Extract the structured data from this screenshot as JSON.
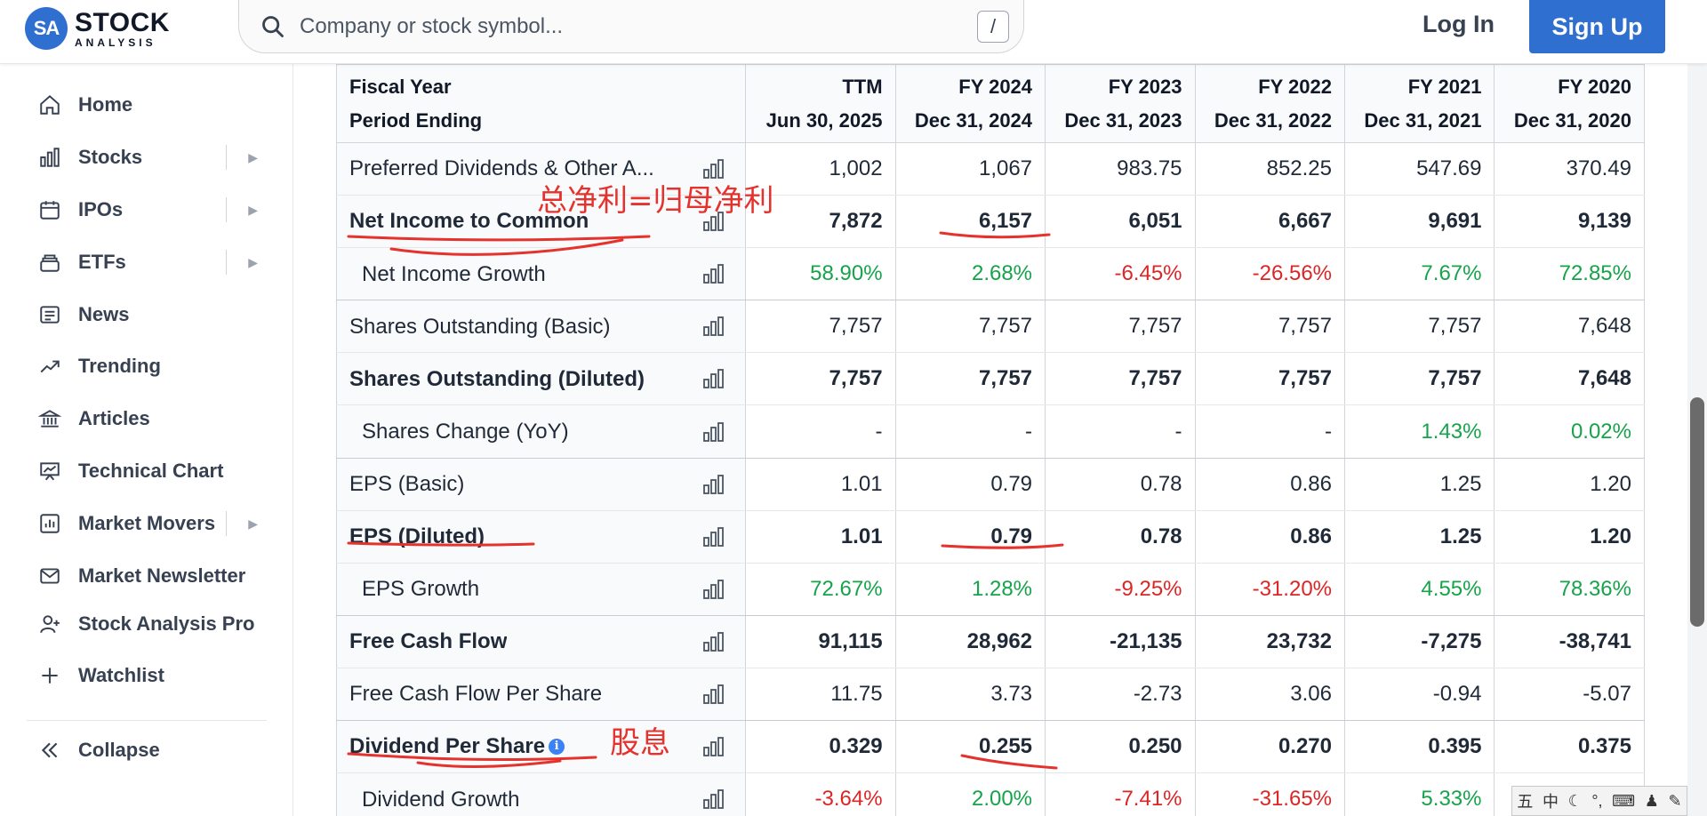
{
  "header": {
    "logo_badge": "SA",
    "logo_line1": "STOCK",
    "logo_line2": "ANALYSIS",
    "search_placeholder": "Company or stock symbol...",
    "search_shortcut": "/",
    "login_label": "Log In",
    "signup_label": "Sign Up",
    "accent_color": "#2f6fcf"
  },
  "sidebar": {
    "items": [
      {
        "label": "Home",
        "icon": "home-icon"
      },
      {
        "label": "Stocks",
        "icon": "bar-chart-icon",
        "expandable": true
      },
      {
        "label": "IPOs",
        "icon": "calendar-icon",
        "expandable": true
      },
      {
        "label": "ETFs",
        "icon": "stack-icon",
        "expandable": true
      },
      {
        "label": "News",
        "icon": "newspaper-icon"
      },
      {
        "label": "Trending",
        "icon": "trending-icon"
      },
      {
        "label": "Articles",
        "icon": "bank-icon"
      },
      {
        "label": "Technical Chart",
        "icon": "presentation-chart-icon"
      },
      {
        "label": "Market Movers",
        "icon": "chart-box-icon",
        "expandable": true
      },
      {
        "label": "Market Newsletter",
        "icon": "mail-icon"
      },
      {
        "label": "Stock Analysis Pro",
        "icon": "user-plus-icon"
      },
      {
        "label": "Watchlist",
        "icon": "plus-icon"
      }
    ],
    "collapse_label": "Collapse"
  },
  "table": {
    "header_label_1": "Fiscal Year",
    "header_label_2": "Period Ending",
    "columns": [
      {
        "fy": "TTM",
        "date": "Jun 30, 2025"
      },
      {
        "fy": "FY 2024",
        "date": "Dec 31, 2024"
      },
      {
        "fy": "FY 2023",
        "date": "Dec 31, 2023"
      },
      {
        "fy": "FY 2022",
        "date": "Dec 31, 2022"
      },
      {
        "fy": "FY 2021",
        "date": "Dec 31, 2021"
      },
      {
        "fy": "FY 2020",
        "date": "Dec 31, 2020"
      }
    ],
    "rows": [
      {
        "label": "Preferred Dividends & Other A...",
        "values": [
          "1,002",
          "1,067",
          "983.75",
          "852.25",
          "547.69",
          "370.49"
        ]
      },
      {
        "label": "Net Income to Common",
        "values": [
          "7,872",
          "6,157",
          "6,051",
          "6,667",
          "9,691",
          "9,139"
        ]
      },
      {
        "label": "Net Income Growth",
        "values": [
          "58.90%",
          "2.68%",
          "-6.45%",
          "-26.56%",
          "7.67%",
          "72.85%"
        ]
      },
      {
        "label": "Shares Outstanding (Basic)",
        "values": [
          "7,757",
          "7,757",
          "7,757",
          "7,757",
          "7,757",
          "7,648"
        ]
      },
      {
        "label": "Shares Outstanding (Diluted)",
        "values": [
          "7,757",
          "7,757",
          "7,757",
          "7,757",
          "7,757",
          "7,648"
        ]
      },
      {
        "label": "Shares Change (YoY)",
        "values": [
          "-",
          "-",
          "-",
          "-",
          "1.43%",
          "0.02%"
        ]
      },
      {
        "label": "EPS (Basic)",
        "values": [
          "1.01",
          "0.79",
          "0.78",
          "0.86",
          "1.25",
          "1.20"
        ]
      },
      {
        "label": "EPS (Diluted)",
        "values": [
          "1.01",
          "0.79",
          "0.78",
          "0.86",
          "1.25",
          "1.20"
        ]
      },
      {
        "label": "EPS Growth",
        "values": [
          "72.67%",
          "1.28%",
          "-9.25%",
          "-31.20%",
          "4.55%",
          "78.36%"
        ]
      },
      {
        "label": "Free Cash Flow",
        "values": [
          "91,115",
          "28,962",
          "-21,135",
          "23,732",
          "-7,275",
          "-38,741"
        ]
      },
      {
        "label": "Free Cash Flow Per Share",
        "values": [
          "11.75",
          "3.73",
          "-2.73",
          "3.06",
          "-0.94",
          "-5.07"
        ]
      },
      {
        "label": "Dividend Per Share",
        "values": [
          "0.329",
          "0.255",
          "0.250",
          "0.270",
          "0.395",
          "0.375"
        ]
      },
      {
        "label": "Dividend Growth",
        "values": [
          "-3.64%",
          "2.00%",
          "-7.41%",
          "-31.65%",
          "5.33%",
          ""
        ]
      }
    ],
    "positive_color": "#16a34a",
    "negative_color": "#dc2626"
  },
  "annotations": {
    "net_income_note": "总净利=归母净利",
    "dividend_note": "股息",
    "color": "#e5322d"
  },
  "ime": {
    "wubi": "五",
    "zhong": "中"
  }
}
